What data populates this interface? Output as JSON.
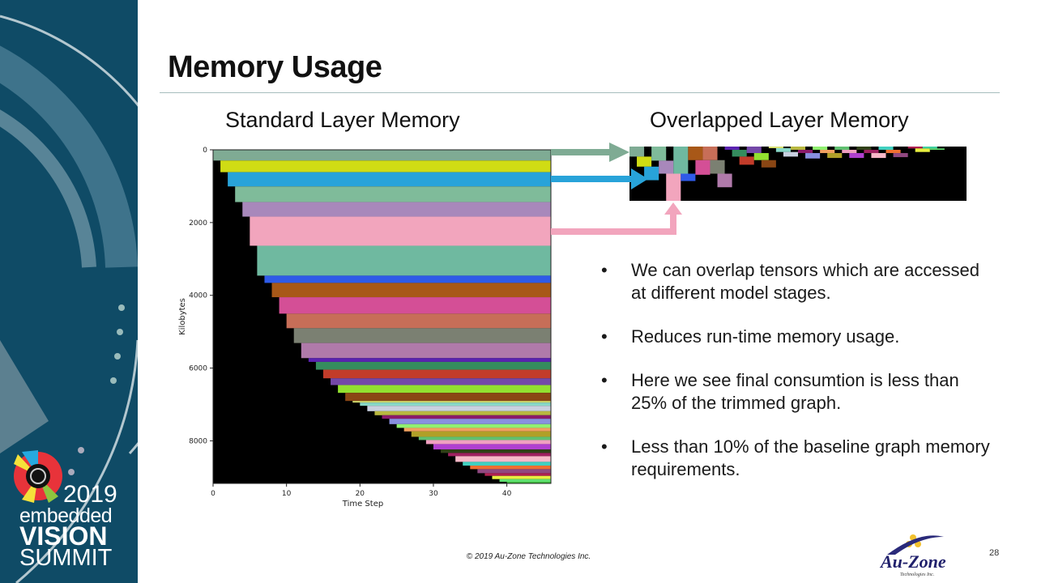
{
  "slide": {
    "title": "Memory Usage",
    "page_number": "28",
    "footer": "© 2019 Au-Zone Technologies Inc.",
    "logo_event": {
      "line1": "2019",
      "line2": "embedded",
      "line3": "VISION",
      "line4": "SUMMIT"
    },
    "logo_company": {
      "name": "Au-Zone",
      "tagline": "Technologies Inc."
    },
    "bullets": [
      "We can overlap tensors which are accessed at different model stages.",
      "Reduces run-time memory usage.",
      "Here we see final consumtion is less than 25% of the trimmed graph.",
      "Less than 10% of the baseline graph memory requirements."
    ],
    "arrow_colors": [
      "#7fab94",
      "#28a3d9",
      "#f2a5bd"
    ]
  },
  "chart_data": [
    {
      "type": "bar",
      "title": "Standard Layer Memory",
      "xlabel": "Time Step",
      "ylabel": "Kilobytes",
      "xlim": [
        0,
        46
      ],
      "ylim": [
        9170,
        0
      ],
      "xticks": [
        "0",
        "10",
        "20",
        "30",
        "40"
      ],
      "yticks": [
        "0",
        "2000",
        "4000",
        "6000",
        "8000"
      ],
      "background": "#000000",
      "grid": false,
      "bars_note_fields": [
        "start_step",
        "kb_top",
        "kb_bottom",
        "color"
      ],
      "bars": [
        [
          0,
          0,
          296,
          "#7fab94"
        ],
        [
          1,
          296,
          615,
          "#d0dc14"
        ],
        [
          2,
          615,
          1007,
          "#28a3d9"
        ],
        [
          3,
          1007,
          1437,
          "#7fbb9a"
        ],
        [
          4,
          1437,
          1837,
          "#a888bb"
        ],
        [
          5,
          1837,
          2637,
          "#f2a5bd"
        ],
        [
          6,
          2637,
          3459,
          "#6fb9a0"
        ],
        [
          7,
          3459,
          3659,
          "#2f5be8"
        ],
        [
          8,
          3659,
          4052,
          "#a85818"
        ],
        [
          9,
          4052,
          4504,
          "#d44f96"
        ],
        [
          10,
          4504,
          4904,
          "#c76e58"
        ],
        [
          11,
          4904,
          5311,
          "#7b8072"
        ],
        [
          12,
          5311,
          5726,
          "#b07aaa"
        ],
        [
          13,
          5726,
          5830,
          "#5a22b0"
        ],
        [
          14,
          5830,
          6044,
          "#358c5e"
        ],
        [
          15,
          6044,
          6281,
          "#c23c2a"
        ],
        [
          16,
          6281,
          6467,
          "#7448a8"
        ],
        [
          17,
          6467,
          6681,
          "#92e030"
        ],
        [
          18,
          6681,
          6904,
          "#8a4614"
        ],
        [
          19,
          6904,
          6948,
          "#d8e070"
        ],
        [
          20,
          6948,
          7037,
          "#88d8c8"
        ],
        [
          21,
          7037,
          7185,
          "#c8d0e0"
        ],
        [
          22,
          7185,
          7296,
          "#b8b840"
        ],
        [
          23,
          7296,
          7393,
          "#8a1a6a"
        ],
        [
          24,
          7393,
          7541,
          "#8890e0"
        ],
        [
          25,
          7541,
          7644,
          "#90f070"
        ],
        [
          26,
          7644,
          7741,
          "#f0a060"
        ],
        [
          27,
          7741,
          7889,
          "#b0a028"
        ],
        [
          28,
          7889,
          7978,
          "#60c070"
        ],
        [
          29,
          7978,
          8089,
          "#f0a0c0"
        ],
        [
          30,
          8089,
          8237,
          "#b040d0"
        ],
        [
          31,
          8237,
          8333,
          "#304018"
        ],
        [
          32,
          8333,
          8422,
          "#a02060"
        ],
        [
          33,
          8422,
          8578,
          "#f8b8c8"
        ],
        [
          34,
          8578,
          8681,
          "#40d0c0"
        ],
        [
          35,
          8681,
          8778,
          "#f07030"
        ],
        [
          36,
          8778,
          8889,
          "#904880"
        ],
        [
          37,
          8889,
          8963,
          "#b02050"
        ],
        [
          38,
          8963,
          9052,
          "#e8f040"
        ],
        [
          39,
          9052,
          9126,
          "#60e070"
        ],
        [
          40,
          9126,
          9170,
          "#40c040"
        ]
      ]
    },
    {
      "type": "bar",
      "title": "Overlapped Layer Memory",
      "xlim": [
        0,
        46
      ],
      "ylim": [
        1600,
        0
      ],
      "background": "#000000",
      "grid": false,
      "blocks": [
        [
          0,
          0,
          296,
          "#7fab94"
        ],
        [
          1,
          296,
          592,
          "#d0dc14"
        ],
        [
          2,
          592,
          992,
          "#28a3d9"
        ],
        [
          3,
          0,
          416,
          "#7fbb9a"
        ],
        [
          4,
          416,
          800,
          "#a888bb"
        ],
        [
          5,
          800,
          1600,
          "#f2a5bd"
        ],
        [
          6,
          0,
          800,
          "#6fb9a0"
        ],
        [
          7,
          800,
          1016,
          "#2f5be8"
        ],
        [
          8,
          0,
          400,
          "#a85818"
        ],
        [
          9,
          400,
          832,
          "#d44f96"
        ],
        [
          10,
          0,
          400,
          "#c76e58"
        ],
        [
          11,
          400,
          800,
          "#7b8072"
        ],
        [
          12,
          800,
          1200,
          "#b07aaa"
        ],
        [
          13,
          0,
          96,
          "#5a22b0"
        ],
        [
          14,
          96,
          296,
          "#358c5e"
        ],
        [
          15,
          296,
          536,
          "#c23c2a"
        ],
        [
          16,
          0,
          192,
          "#7448a8"
        ],
        [
          17,
          192,
          400,
          "#92e030"
        ],
        [
          18,
          400,
          616,
          "#8a4614"
        ],
        [
          19,
          0,
          48,
          "#d8e070"
        ],
        [
          20,
          48,
          160,
          "#88d8c8"
        ],
        [
          21,
          160,
          296,
          "#c8d0e0"
        ],
        [
          22,
          0,
          96,
          "#b8b840"
        ],
        [
          23,
          96,
          192,
          "#8a1a6a"
        ],
        [
          24,
          192,
          352,
          "#8890e0"
        ],
        [
          25,
          0,
          96,
          "#90f070"
        ],
        [
          26,
          96,
          192,
          "#f0a060"
        ],
        [
          27,
          192,
          336,
          "#b0a028"
        ],
        [
          28,
          0,
          96,
          "#60c070"
        ],
        [
          29,
          96,
          192,
          "#f0a0c0"
        ],
        [
          30,
          192,
          336,
          "#b040d0"
        ],
        [
          31,
          0,
          96,
          "#304018"
        ],
        [
          32,
          96,
          192,
          "#a02060"
        ],
        [
          33,
          192,
          336,
          "#f8b8c8"
        ],
        [
          34,
          0,
          96,
          "#40d0c0"
        ],
        [
          35,
          96,
          192,
          "#f07030"
        ],
        [
          36,
          192,
          312,
          "#904880"
        ],
        [
          38,
          0,
          56,
          "#b02050"
        ],
        [
          39,
          56,
          160,
          "#e8f040"
        ],
        [
          40,
          0,
          56,
          "#40d0a0"
        ],
        [
          41,
          56,
          96,
          "#60e070"
        ]
      ]
    }
  ]
}
